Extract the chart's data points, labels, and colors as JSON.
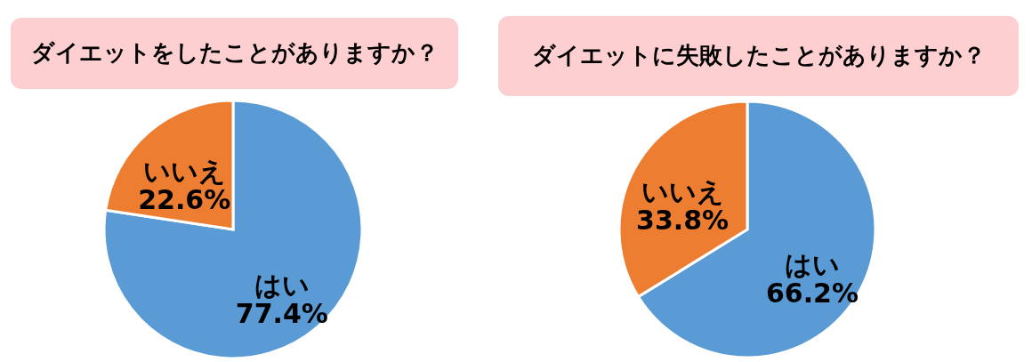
{
  "chart_data": [
    {
      "type": "pie",
      "title": "ダイエットをしたことがありますか？",
      "categories": [
        "はい",
        "いいえ"
      ],
      "values": [
        77.4,
        22.6
      ],
      "colors": [
        "#5b9bd5",
        "#ed7d31"
      ],
      "value_labels": [
        "77.4%",
        "22.6%"
      ],
      "legend": false
    },
    {
      "type": "pie",
      "title": "ダイエットに失敗したことがありますか？",
      "categories": [
        "はい",
        "いいえ"
      ],
      "values": [
        66.2,
        33.8
      ],
      "colors": [
        "#5b9bd5",
        "#ed7d31"
      ],
      "value_labels": [
        "66.2%",
        "33.8%"
      ],
      "legend": false
    }
  ]
}
